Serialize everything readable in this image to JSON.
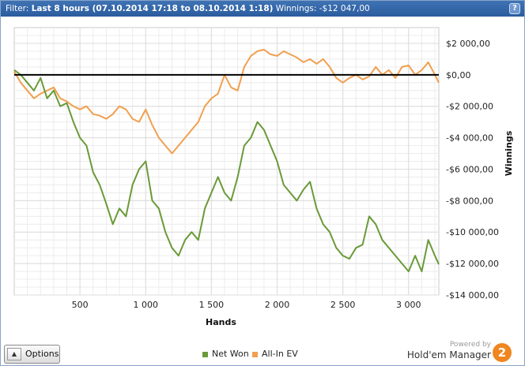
{
  "filter_bar": {
    "prefix": "Filter: ",
    "range": "Last 8 hours (07.10.2014 17:18 to 08.10.2014 1:18)",
    "winnings": "  Winnings: -$12 047,00",
    "help_label": "?"
  },
  "options_button": {
    "arrow": "▲",
    "label": "Options"
  },
  "branding": {
    "powered_by": "Powered by",
    "product": "Hold'em Manager",
    "version": "2"
  },
  "colors": {
    "net_won": "#6a9a38",
    "all_in_ev": "#f0a050",
    "zero_line": "#000000",
    "grid": "#dcdcdc"
  },
  "chart_data": {
    "type": "line",
    "xlabel": "Hands",
    "ylabel": "Winnings",
    "xlim": [
      0,
      3230
    ],
    "ylim": [
      -14000,
      3000
    ],
    "grid": true,
    "legend_position": "bottom",
    "x_ticks": [
      500,
      1000,
      1500,
      2000,
      2500,
      3000
    ],
    "x_tick_labels": [
      "500",
      "1 000",
      "1 500",
      "2 000",
      "2 500",
      "3 000"
    ],
    "y_ticks": [
      2000,
      0,
      -2000,
      -4000,
      -6000,
      -8000,
      -10000,
      -12000,
      -14000
    ],
    "y_tick_labels": [
      "$2 000,00",
      "$0,00",
      "-$2 000,00",
      "-$4 000,00",
      "-$6 000,00",
      "-$8 000,00",
      "-$10 000,00",
      "-$12 000,00",
      "-$14 000,00"
    ],
    "series": [
      {
        "name": "Net Won",
        "x": [
          0,
          50,
          100,
          150,
          200,
          250,
          300,
          350,
          400,
          450,
          500,
          550,
          600,
          650,
          700,
          750,
          800,
          850,
          900,
          950,
          1000,
          1050,
          1100,
          1150,
          1200,
          1250,
          1300,
          1350,
          1400,
          1450,
          1500,
          1550,
          1600,
          1650,
          1700,
          1750,
          1800,
          1850,
          1900,
          1950,
          2000,
          2050,
          2100,
          2150,
          2200,
          2250,
          2300,
          2350,
          2400,
          2450,
          2500,
          2550,
          2600,
          2650,
          2700,
          2750,
          2800,
          2850,
          2900,
          2950,
          3000,
          3050,
          3100,
          3150,
          3200,
          3230
        ],
        "values": [
          300,
          0,
          -500,
          -1000,
          -200,
          -1500,
          -1000,
          -2000,
          -1800,
          -3000,
          -4000,
          -4500,
          -6200,
          -7000,
          -8200,
          -9500,
          -8500,
          -9000,
          -7000,
          -6000,
          -5500,
          -8000,
          -8500,
          -10000,
          -11000,
          -11500,
          -10500,
          -10000,
          -10500,
          -8500,
          -7500,
          -6500,
          -7500,
          -8000,
          -6500,
          -4500,
          -4000,
          -3000,
          -3500,
          -4500,
          -5500,
          -7000,
          -7500,
          -8000,
          -7300,
          -6800,
          -8500,
          -9500,
          -10000,
          -11000,
          -11500,
          -11700,
          -11000,
          -10800,
          -9000,
          -9500,
          -10500,
          -11000,
          -11500,
          -12000,
          -12500,
          -11500,
          -12500,
          -10500,
          -11500,
          -12050
        ]
      },
      {
        "name": "All-In EV",
        "x": [
          0,
          50,
          100,
          150,
          200,
          250,
          300,
          350,
          400,
          450,
          500,
          550,
          600,
          650,
          700,
          750,
          800,
          850,
          900,
          950,
          1000,
          1050,
          1100,
          1150,
          1200,
          1250,
          1300,
          1350,
          1400,
          1450,
          1500,
          1550,
          1600,
          1650,
          1700,
          1750,
          1800,
          1850,
          1900,
          1950,
          2000,
          2050,
          2100,
          2150,
          2200,
          2250,
          2300,
          2350,
          2400,
          2450,
          2500,
          2550,
          2600,
          2650,
          2700,
          2750,
          2800,
          2850,
          2900,
          2950,
          3000,
          3050,
          3100,
          3150,
          3200,
          3230
        ],
        "values": [
          200,
          -500,
          -1000,
          -1500,
          -1200,
          -1000,
          -800,
          -1500,
          -1700,
          -2000,
          -2200,
          -2000,
          -2500,
          -2600,
          -2800,
          -2500,
          -2000,
          -2200,
          -2800,
          -3000,
          -2200,
          -3200,
          -4000,
          -4500,
          -5000,
          -4500,
          -4000,
          -3500,
          -3000,
          -2000,
          -1500,
          -1200,
          0,
          -800,
          -1000,
          500,
          1200,
          1500,
          1600,
          1300,
          1200,
          1500,
          1300,
          1100,
          800,
          1000,
          700,
          1000,
          500,
          -200,
          -500,
          -200,
          0,
          -300,
          -100,
          500,
          0,
          300,
          -200,
          500,
          600,
          0,
          300,
          800,
          0,
          -500
        ]
      }
    ]
  }
}
